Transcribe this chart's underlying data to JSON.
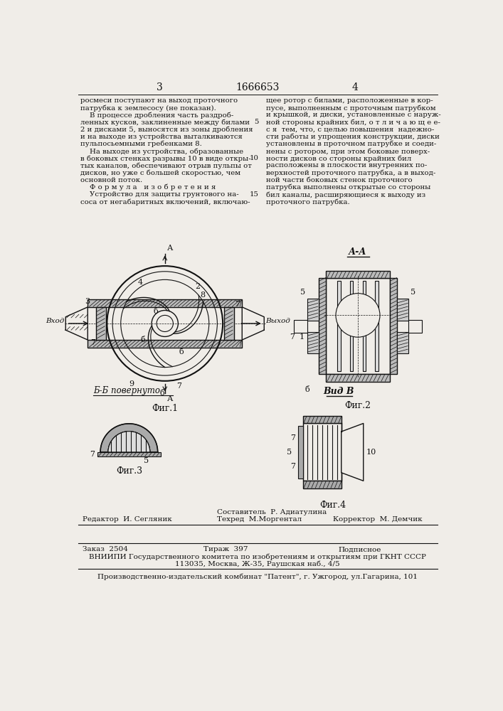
{
  "page_number_left": "3",
  "page_number_right": "4",
  "patent_number": "1666653",
  "bg_color": "#f0ede8",
  "text_color": "#111111",
  "left_column_text": [
    "росмеси поступают на выход проточного",
    "патрубка к землесосу (не показан).",
    "    В процессе дробления часть раздроб-",
    "ленных кусков, заклиненные между билами",
    "2 и дисками 5, выносятся из зоны дробления",
    "и на выходе из устройства выталкиваются",
    "пульпосьемными гребенками 8.",
    "    На выходе из устройства, образованные",
    "в боковых стенках разрывы 10 в виде откры-",
    "тых каналов, обеспечивают отрыв пульпы от",
    "дисков, но уже с большей скоростью, чем",
    "основной поток.",
    "    Ф о р м у л а   и з о б р е т е н и я",
    "    Устройство для защиты грунтового на-",
    "соса от негабаритных включений, включаю-"
  ],
  "right_column_text": [
    "щее ротор с билами, расположенные в кор-",
    "пусе, выполненным с проточным патрубком",
    "и крышкой, и диски, установленные с наруж-",
    "ной стороны крайних бил, о т л и ч а ю щ е е-",
    "с я  тем, что, с целью повышения  надежно-",
    "сти работы и упрощения конструкции, диски",
    "установлены в проточном патрубке и соеди-",
    "нены с ротором, при этом боковые поверх-",
    "ности дисков со стороны крайних бил",
    "расположены в плоскости внутренних по-",
    "верхностей проточного патрубка, а в выход-",
    "ной части боковых стенок проточного",
    "патрубка выполнены открытые со стороны",
    "бил каналы, расширяющиеся к выходу из",
    "проточного патрубка."
  ],
  "fig1_label": "Фиг.1",
  "fig2_label": "Фиг.2",
  "fig3_label": "Фиг.3",
  "fig4_label": "Фиг.4",
  "fig3_section": "Б-Б повернуто",
  "fig4_section": "Вид В",
  "fig2_section": "А-А",
  "editor_line": "Редактор  И. Сегляник",
  "composer_line": "Составитель  Р. Адиатулина",
  "corrector_line": "Корректор  М. Демчик",
  "techred_line": "Техред  М.Моргентал",
  "order_line": "Заказ  2504",
  "tiraz_line": "Тираж  397",
  "podpis_line": "Подписное",
  "vnipi_line": "ВНИИПИ Государственного комитета по изобретениям и открытиям при ГКНТ СССР",
  "address_line": "113035, Москва, Ж-35, Раушская наб., 4/5",
  "factory_line": "Производственно-издательский комбинат \"Патент\", г. Ужгород, ул.Гагарина, 101",
  "hatch_color": "#888888",
  "line_color": "#111111"
}
